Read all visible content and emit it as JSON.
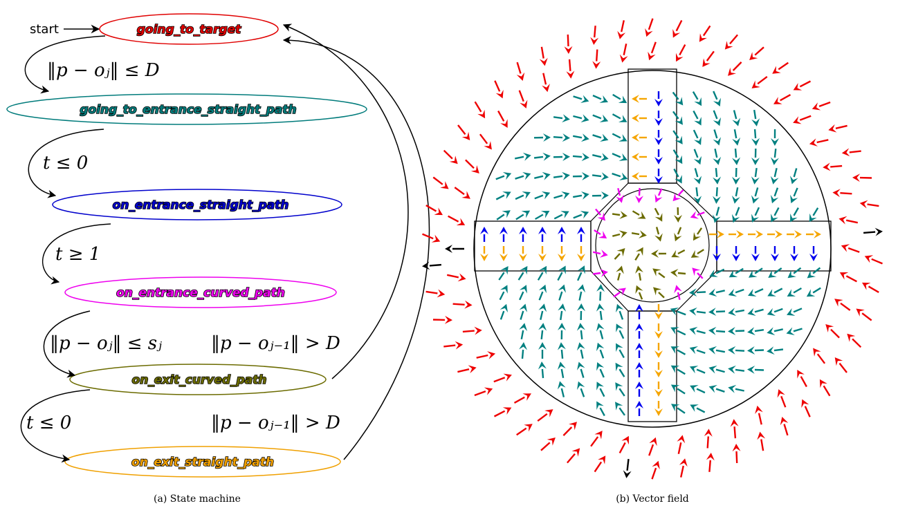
{
  "state_machine": {
    "start_label": "start",
    "states": [
      {
        "id": "s1",
        "label": "going_to_target",
        "color": "#e00000"
      },
      {
        "id": "s2",
        "label": "going_to_entrance_straight_path",
        "color": "#007b7b"
      },
      {
        "id": "s3",
        "label": "on_entrance_straight_path",
        "color": "#0000cc"
      },
      {
        "id": "s4",
        "label": "on_entrance_curved_path",
        "color": "#ee00ee"
      },
      {
        "id": "s5",
        "label": "on_exit_curved_path",
        "color": "#6b6b00"
      },
      {
        "id": "s6",
        "label": "on_exit_straight_path",
        "color": "#f0a000"
      }
    ],
    "conditions": {
      "c1": "‖p − oⱼ‖ ≤ D",
      "c2": "t ≤ 0",
      "c3": "t ≥ 1",
      "c4": "‖p − oⱼ‖ ≤ sⱼ",
      "c5": "‖p − oⱼ₋₁‖ > D",
      "c6": "t ≤ 0",
      "c7": "‖p − oⱼ₋₁‖ > D"
    },
    "caption": "(a) State machine"
  },
  "vector_field": {
    "caption": "(b) Vector field",
    "colors": {
      "outside": "#ee0000",
      "approach": "#008080",
      "entrance_straight": "#0000ee",
      "entrance_curved": "#ee00ee",
      "exit_curved": "#6b6b00",
      "exit_straight": "#f5a500",
      "exit_direction": "#000000"
    }
  }
}
